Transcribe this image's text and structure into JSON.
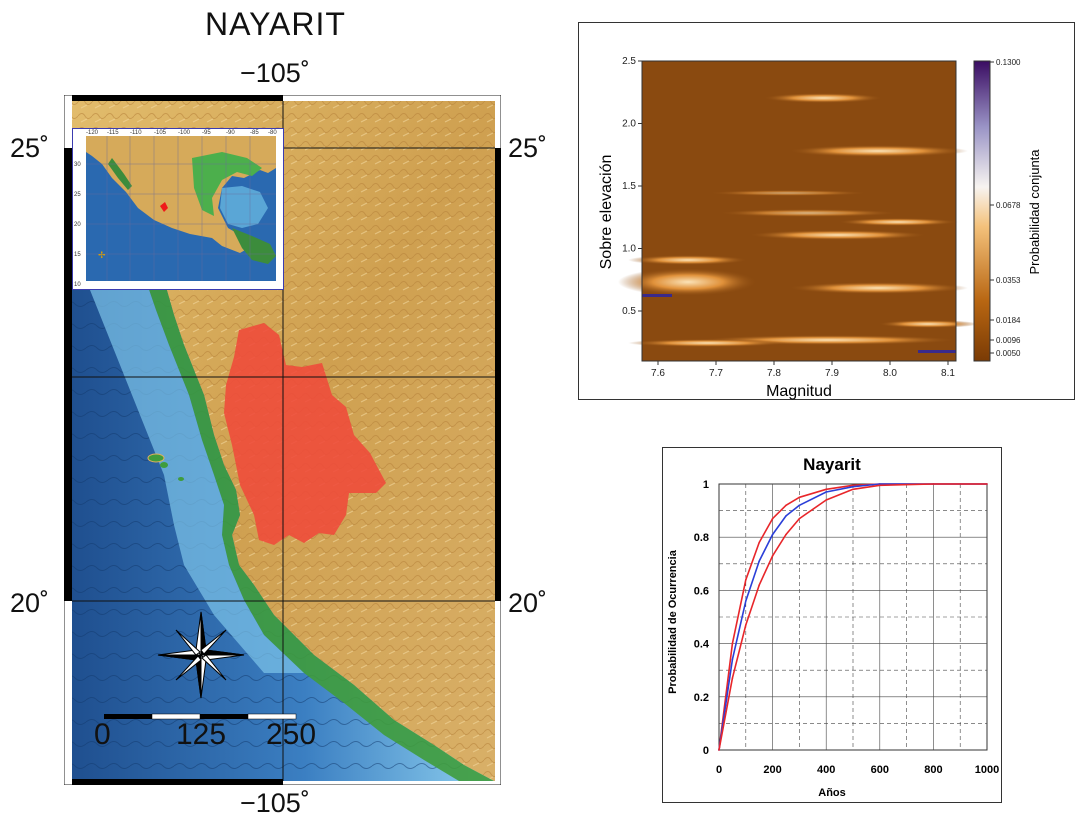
{
  "map": {
    "title": "NAYARIT",
    "lon_top": "−105˚",
    "lon_bottom": "−105˚",
    "lat_left_top": "25˚",
    "lat_right_top": "25˚",
    "lat_left_bottom": "20˚",
    "lat_right_bottom": "20˚",
    "scale_labels": [
      "0",
      "125",
      "250"
    ],
    "inset": {
      "lon_ticks": [
        "-120",
        "-115",
        "-110",
        "-105",
        "-100",
        "-95",
        "-90",
        "-85",
        "-80"
      ],
      "lat_ticks": [
        "30",
        "25",
        "20",
        "15",
        "10"
      ]
    },
    "colors": {
      "ocean_deep": "#1d4f8c",
      "ocean_shallow": "#7fc1e8",
      "lowland": "#3c9a3c",
      "highland": "#d6aa5a",
      "state_highlight": "#ef4a3a"
    },
    "compass_icon": "compass-rose-icon"
  },
  "joint_probability": {
    "xlabel": "Magnitud",
    "ylabel": "Sobre elevación",
    "colorbar_label": "Probabilidad conjunta",
    "x_ticks": [
      "7.6",
      "7.7",
      "7.8",
      "7.9",
      "8.0",
      "8.1"
    ],
    "y_ticks": [
      "0.5",
      "1.0",
      "1.5",
      "2.0",
      "2.5"
    ],
    "colorbar_ticks": [
      "0.1300",
      "0.0678",
      "0.0353",
      "0.0184",
      "0.0096",
      "0.0050"
    ],
    "colors": {
      "background": "#8a4a10",
      "streak": "#f3c37e",
      "peak": "#4b1f7a"
    }
  },
  "chart_data": {
    "type": "line",
    "title": "Nayarit",
    "xlabel": "Años",
    "ylabel": "Probabilidad de Ocurrencia",
    "xlim": [
      0,
      1000
    ],
    "ylim": [
      0,
      1
    ],
    "x_ticks": [
      "0",
      "200",
      "400",
      "600",
      "800",
      "1000"
    ],
    "y_ticks": [
      "0",
      "0.2",
      "0.4",
      "0.6",
      "0.8",
      "1"
    ],
    "x": [
      0,
      50,
      100,
      150,
      200,
      250,
      300,
      400,
      500,
      600,
      800,
      1000
    ],
    "series": [
      {
        "color": "#e8262a",
        "values": [
          0,
          0.4,
          0.64,
          0.78,
          0.87,
          0.92,
          0.95,
          0.98,
          0.995,
          1,
          1,
          1
        ]
      },
      {
        "color": "#2b3fd8",
        "values": [
          0,
          0.34,
          0.56,
          0.71,
          0.81,
          0.88,
          0.92,
          0.97,
          0.99,
          1,
          1,
          1
        ]
      },
      {
        "color": "#e8262a",
        "values": [
          0,
          0.27,
          0.47,
          0.62,
          0.73,
          0.81,
          0.87,
          0.94,
          0.98,
          0.995,
          1,
          1
        ]
      }
    ],
    "grid": true
  }
}
